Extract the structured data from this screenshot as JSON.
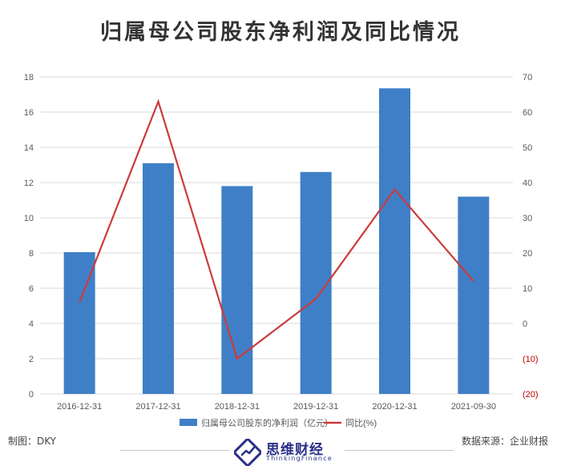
{
  "header": {
    "title": "归属母公司股东净利润及同比情况"
  },
  "footer": {
    "credit": "制图：DKY",
    "source": "数据来源：企业财报",
    "logo_name": "思维财经",
    "logo_sub": "ThinkingFinance"
  },
  "colors": {
    "bar": "#3f7fc7",
    "line": "#cc3b3b",
    "grid": "#d9d9d9",
    "axis_text": "#595959",
    "negative_tick": "#c00000"
  },
  "chart_data": {
    "type": "bar",
    "categories": [
      "2016-12-31",
      "2017-12-31",
      "2018-12-31",
      "2019-12-31",
      "2020-12-31",
      "2021-09-30"
    ],
    "series": [
      {
        "name": "归属母公司股东的净利润（亿元）",
        "type": "bar",
        "axis": "left",
        "values": [
          8.05,
          13.1,
          11.8,
          12.6,
          17.35,
          11.2
        ]
      },
      {
        "name": "同比(%)",
        "type": "line",
        "axis": "right",
        "values": [
          6,
          63,
          -10,
          7,
          38,
          12
        ]
      }
    ],
    "y_left": {
      "min": 0,
      "max": 18,
      "step": 2,
      "tick_labels": [
        "0",
        "2",
        "4",
        "6",
        "8",
        "10",
        "12",
        "14",
        "16",
        "18"
      ]
    },
    "y_right": {
      "min": -20,
      "max": 70,
      "step": 10,
      "tick_labels": [
        "(20)",
        "(10)",
        "0",
        "10",
        "20",
        "30",
        "40",
        "50",
        "60",
        "70"
      ]
    },
    "grid": true,
    "legend_position": "bottom"
  }
}
